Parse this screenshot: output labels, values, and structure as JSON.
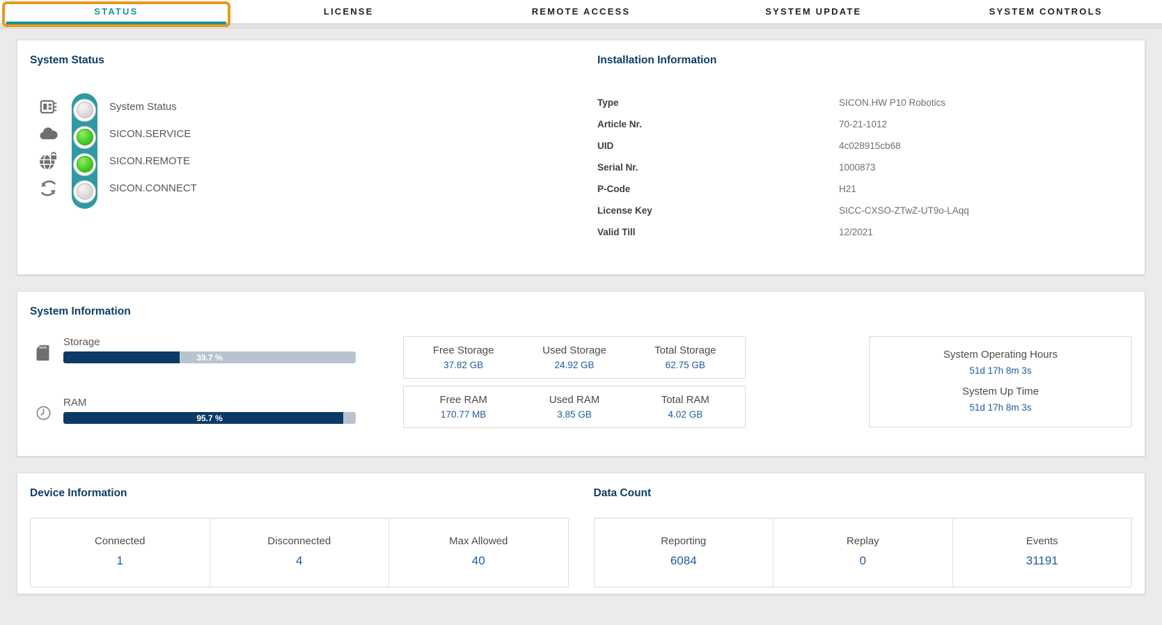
{
  "tabs": [
    {
      "label": "STATUS",
      "active": true
    },
    {
      "label": "LICENSE",
      "active": false
    },
    {
      "label": "REMOTE ACCESS",
      "active": false
    },
    {
      "label": "SYSTEM UPDATE",
      "active": false
    },
    {
      "label": "SYSTEM CONTROLS",
      "active": false
    }
  ],
  "system_status": {
    "title": "System Status",
    "items": [
      {
        "label": "System Status",
        "icon": "system-board-icon",
        "state": "off"
      },
      {
        "label": "SICON.SERVICE",
        "icon": "cloud-icon",
        "state": "on"
      },
      {
        "label": "SICON.REMOTE",
        "icon": "globe-lock-icon",
        "state": "on"
      },
      {
        "label": "SICON.CONNECT",
        "icon": "sync-icon",
        "state": "off"
      }
    ]
  },
  "installation": {
    "title": "Installation Information",
    "rows": [
      {
        "key": "Type",
        "value": "SICON.HW P10 Robotics"
      },
      {
        "key": "Article Nr.",
        "value": "70-21-1012"
      },
      {
        "key": "UID",
        "value": "4c028915cb68"
      },
      {
        "key": "Serial Nr.",
        "value": "1000873"
      },
      {
        "key": "P-Code",
        "value": "H21"
      },
      {
        "key": "License Key",
        "value": "SICC-CXSO-ZTwZ-UT9o-LAqq"
      },
      {
        "key": "Valid Till",
        "value": "12/2021"
      }
    ]
  },
  "system_information": {
    "title": "System Information",
    "gauges": [
      {
        "label": "Storage",
        "percent": 39.7,
        "percent_label": "39.7 %",
        "icon": "sd-card-icon"
      },
      {
        "label": "RAM",
        "percent": 95.7,
        "percent_label": "95.7 %",
        "icon": "clock-icon"
      }
    ],
    "storage_stats": [
      {
        "label": "Free Storage",
        "value": "37.82 GB"
      },
      {
        "label": "Used Storage",
        "value": "24.92 GB"
      },
      {
        "label": "Total Storage",
        "value": "62.75 GB"
      }
    ],
    "ram_stats": [
      {
        "label": "Free RAM",
        "value": "170.77 MB"
      },
      {
        "label": "Used RAM",
        "value": "3.85 GB"
      },
      {
        "label": "Total RAM",
        "value": "4.02 GB"
      }
    ],
    "uptime_stats": [
      {
        "label": "System Operating Hours",
        "value": "51d 17h 8m 3s"
      },
      {
        "label": "System Up Time",
        "value": "51d 17h 8m 3s"
      }
    ]
  },
  "device_information": {
    "title": "Device Information",
    "stats": [
      {
        "label": "Connected",
        "value": "1"
      },
      {
        "label": "Disconnected",
        "value": "4"
      },
      {
        "label": "Max Allowed",
        "value": "40"
      }
    ]
  },
  "data_count": {
    "title": "Data Count",
    "stats": [
      {
        "label": "Reporting",
        "value": "6084"
      },
      {
        "label": "Replay",
        "value": "0"
      },
      {
        "label": "Events",
        "value": "31191"
      }
    ]
  },
  "colors": {
    "accent_teal": "#17939c",
    "highlight_orange": "#e8991d",
    "heading_navy": "#0d3d66",
    "value_blue": "#1d5a9e",
    "bar_fill_navy": "#0c3a66",
    "bar_track_gray": "#b7c4cf",
    "pill_teal": "#2d9aa4",
    "light_on_green": "#47cd23",
    "light_off_gray": "#d9d9d9"
  }
}
